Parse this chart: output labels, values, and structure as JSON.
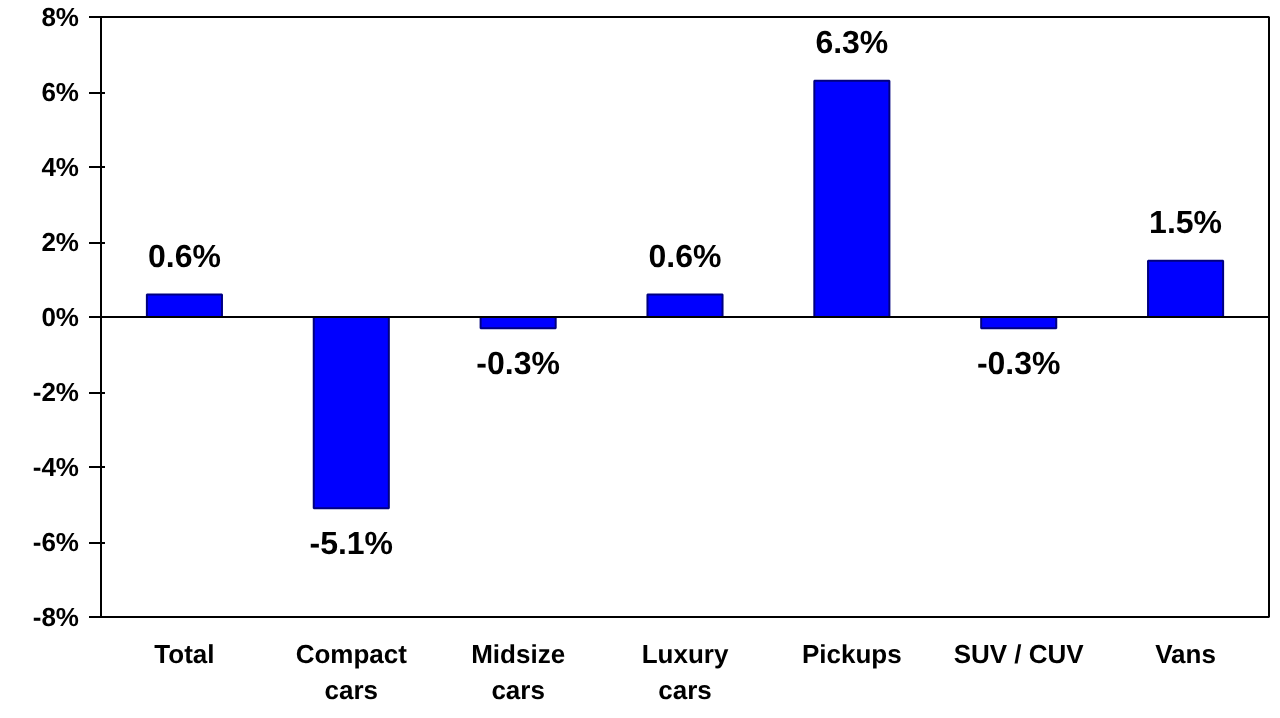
{
  "chart_data": {
    "type": "bar",
    "categories": [
      "Total",
      "Compact\ncars",
      "Midsize\ncars",
      "Luxury\ncars",
      "Pickups",
      "SUV / CUV",
      "Vans"
    ],
    "values": [
      0.6,
      -5.1,
      -0.3,
      0.6,
      6.3,
      -0.3,
      1.5
    ],
    "value_labels": [
      "0.6%",
      "-5.1%",
      "-0.3%",
      "0.6%",
      "6.3%",
      "-0.3%",
      "1.5%"
    ],
    "color": "#0000ff",
    "ylim": [
      -8,
      8
    ],
    "yticks": [
      {
        "value": -8,
        "label": "-8%"
      },
      {
        "value": -6,
        "label": "-6%"
      },
      {
        "value": -4,
        "label": "-4%"
      },
      {
        "value": -2,
        "label": "-2%"
      },
      {
        "value": 0,
        "label": "0%"
      },
      {
        "value": 2,
        "label": "2%"
      },
      {
        "value": 4,
        "label": "4%"
      },
      {
        "value": 6,
        "label": "6%"
      },
      {
        "value": 8,
        "label": "8%"
      }
    ],
    "ref_lines": [
      {
        "axis": "y",
        "value": 0
      }
    ],
    "grid": false
  }
}
